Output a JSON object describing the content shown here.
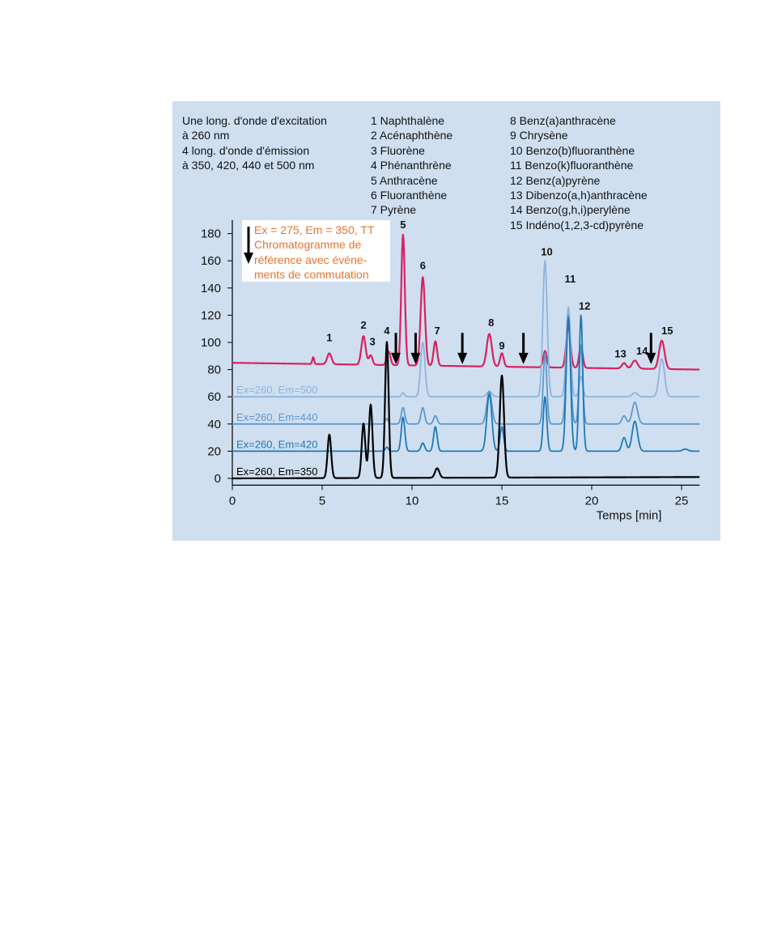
{
  "excitation_note": [
    "Une long. d'onde d'excitation",
    "à 260 nm",
    "4 long. d'onde d'émission",
    "à 350, 420, 440 et 500 nm"
  ],
  "compounds_col_1": [
    "1 Naphthalène",
    "2 Acénaphthène",
    "3 Fluorène",
    "4 Phénanthrène",
    "5 Anthracène",
    "6 Fluoranthène",
    "7 Pyrène"
  ],
  "compounds_col_2": [
    "8 Benz(a)anthracène",
    "9 Chrysène",
    "10 Benzo(b)fluoranthène",
    "11 Benzo(k)fluoranthène",
    "12 Benz(a)pyrène",
    "13 Dibenzo(a,h)anthracène",
    "14 Benzo(g,h,i)perylène",
    "15 Indéno(1,2,3-cd)pyrène"
  ],
  "reference_box": [
    "Ex = 275, Em = 350, TT",
    "Chromatogramme de",
    "référence avec événe-",
    "ments de commutation"
  ],
  "chart_data": {
    "type": "line",
    "xlabel": "Temps [min]",
    "ylabel": "",
    "xlim": [
      0,
      26
    ],
    "ylim": [
      -5,
      190
    ],
    "x_ticks": [
      0,
      5,
      10,
      15,
      20,
      25
    ],
    "y_ticks": [
      0,
      20,
      40,
      60,
      80,
      100,
      120,
      140,
      160,
      180
    ],
    "series": [
      {
        "name": "Ex = 275, Em = 350, TT",
        "color": "#d9215e",
        "baseline_start": 85,
        "baseline_end": 80,
        "peaks": [
          [
            4.5,
            5,
            0.05
          ],
          [
            5.4,
            8,
            0.12
          ],
          [
            7.3,
            21,
            0.12
          ],
          [
            7.7,
            7,
            0.1
          ],
          [
            8.7,
            10,
            0.1
          ],
          [
            9.5,
            96,
            0.1
          ],
          [
            10.6,
            65,
            0.12
          ],
          [
            11.3,
            18,
            0.1
          ],
          [
            14.3,
            24,
            0.14
          ],
          [
            15,
            10,
            0.1
          ],
          [
            17.4,
            12,
            0.1
          ],
          [
            18.7,
            30,
            0.12
          ],
          [
            19.4,
            16,
            0.1
          ],
          [
            21.8,
            4,
            0.12
          ],
          [
            22.4,
            6,
            0.15
          ],
          [
            23.9,
            21,
            0.15
          ]
        ]
      },
      {
        "name": "Ex=260, Em=500",
        "color": "#8fb3dc",
        "baseline_start": 60,
        "baseline_end": 60,
        "peaks": [
          [
            9.5,
            3,
            0.08
          ],
          [
            10.6,
            40,
            0.12
          ],
          [
            14.3,
            4,
            0.14
          ],
          [
            17.4,
            100,
            0.12
          ],
          [
            18.7,
            66,
            0.12
          ],
          [
            19.4,
            15,
            0.1
          ],
          [
            22.4,
            3,
            0.15
          ],
          [
            23.9,
            28,
            0.15
          ]
        ]
      },
      {
        "name": "Ex=260, Em=440",
        "color": "#5d98cd",
        "baseline_start": 40,
        "baseline_end": 40,
        "peaks": [
          [
            8.6,
            4,
            0.08
          ],
          [
            9.5,
            12,
            0.1
          ],
          [
            10.6,
            12,
            0.1
          ],
          [
            11.3,
            6,
            0.1
          ],
          [
            14.3,
            24,
            0.14
          ],
          [
            17.4,
            52,
            0.1
          ],
          [
            18.7,
            80,
            0.12
          ],
          [
            19.4,
            58,
            0.1
          ],
          [
            21.8,
            6,
            0.12
          ],
          [
            22.4,
            16,
            0.15
          ]
        ]
      },
      {
        "name": "Ex=260, Em=420",
        "color": "#1f78b8",
        "baseline_start": 20,
        "baseline_end": 20,
        "peaks": [
          [
            8.6,
            3,
            0.08
          ],
          [
            9.5,
            25,
            0.1
          ],
          [
            10.6,
            6,
            0.1
          ],
          [
            11.3,
            18,
            0.1
          ],
          [
            14.3,
            42,
            0.14
          ],
          [
            15,
            18,
            0.1
          ],
          [
            17.4,
            40,
            0.1
          ],
          [
            18.7,
            98,
            0.12
          ],
          [
            19.4,
            100,
            0.1
          ],
          [
            21.8,
            10,
            0.12
          ],
          [
            22.4,
            22,
            0.15
          ],
          [
            25.2,
            1.5,
            0.15
          ]
        ]
      },
      {
        "name": "Ex=260, Em=350",
        "color": "#000000",
        "baseline_start": 0,
        "baseline_end": 1,
        "peaks": [
          [
            5.4,
            32,
            0.1
          ],
          [
            7.3,
            40,
            0.1
          ],
          [
            7.7,
            54,
            0.1
          ],
          [
            8.6,
            100,
            0.1
          ],
          [
            11.4,
            7,
            0.12
          ],
          [
            15,
            75,
            0.12
          ]
        ]
      }
    ],
    "peak_labels": [
      {
        "label": "1",
        "x": 5.4,
        "y": 101
      },
      {
        "label": "2",
        "x": 7.3,
        "y": 110
      },
      {
        "label": "3",
        "x": 7.8,
        "y": 98
      },
      {
        "label": "4",
        "x": 8.6,
        "y": 106
      },
      {
        "label": "5",
        "x": 9.5,
        "y": 184
      },
      {
        "label": "6",
        "x": 10.6,
        "y": 154
      },
      {
        "label": "7",
        "x": 11.4,
        "y": 106
      },
      {
        "label": "8",
        "x": 14.4,
        "y": 112
      },
      {
        "label": "9",
        "x": 15.0,
        "y": 95
      },
      {
        "label": "10",
        "x": 17.5,
        "y": 164
      },
      {
        "label": "11",
        "x": 18.8,
        "y": 144
      },
      {
        "label": "12",
        "x": 19.6,
        "y": 124
      },
      {
        "label": "13",
        "x": 21.6,
        "y": 89
      },
      {
        "label": "14",
        "x": 22.8,
        "y": 91
      },
      {
        "label": "15",
        "x": 24.2,
        "y": 106
      }
    ],
    "switch_events": [
      9.1,
      10.2,
      12.8,
      16.2,
      23.3
    ]
  }
}
